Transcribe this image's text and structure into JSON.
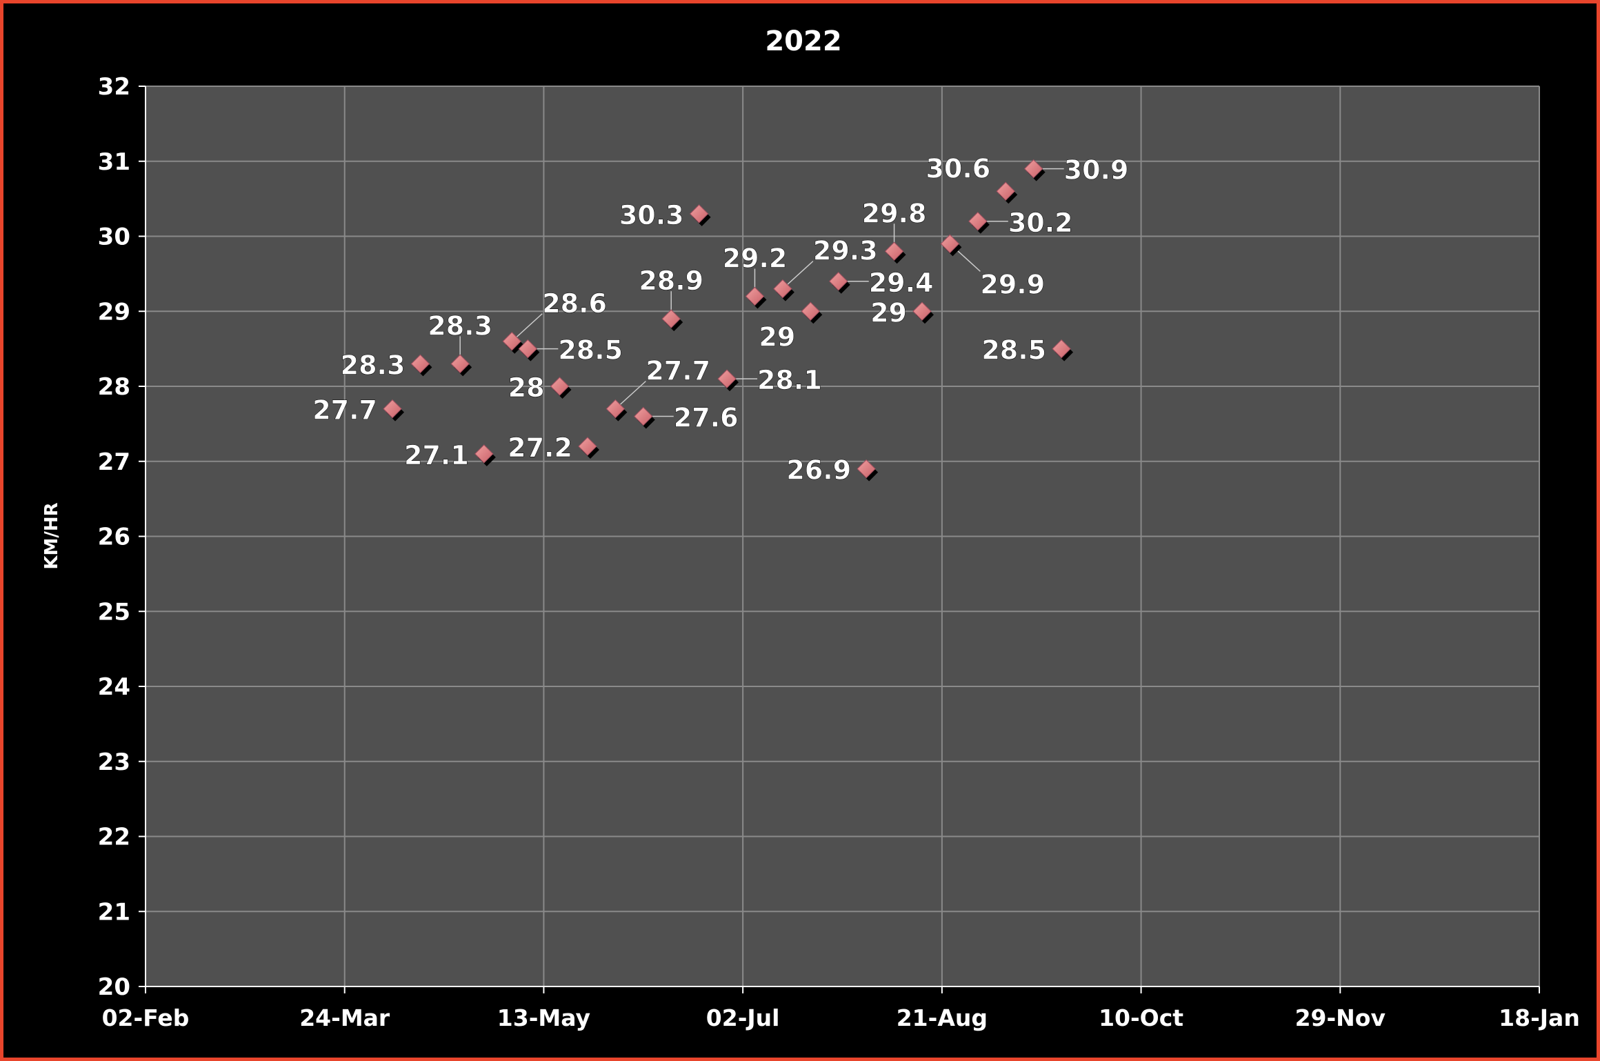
{
  "chart_data": {
    "type": "scatter",
    "title": "2022",
    "xlabel": "",
    "ylabel": "KM/HR",
    "xlim": [
      "2022-02-02",
      "2023-01-18"
    ],
    "ylim": [
      20,
      32
    ],
    "x_tick_labels": [
      "02-Feb",
      "24-Mar",
      "13-May",
      "02-Jul",
      "21-Aug",
      "10-Oct",
      "29-Nov",
      "18-Jan"
    ],
    "y_tick_labels": [
      "20",
      "21",
      "22",
      "23",
      "24",
      "25",
      "26",
      "27",
      "28",
      "29",
      "30",
      "31",
      "32"
    ],
    "grid": true,
    "data_labels": true,
    "colors": {
      "marker": "#e08080",
      "marker_shadow": "#000000",
      "plot_bg": "#505050",
      "grid": "#8a8a8a",
      "border": "#e8452c"
    },
    "points": [
      {
        "x": "2022-04-05",
        "y": 27.7
      },
      {
        "x": "2022-04-12",
        "y": 28.3
      },
      {
        "x": "2022-04-22",
        "y": 28.3
      },
      {
        "x": "2022-04-28",
        "y": 27.1
      },
      {
        "x": "2022-05-05",
        "y": 28.6
      },
      {
        "x": "2022-05-09",
        "y": 28.5
      },
      {
        "x": "2022-05-17",
        "y": 28
      },
      {
        "x": "2022-05-24",
        "y": 27.2
      },
      {
        "x": "2022-05-31",
        "y": 27.7
      },
      {
        "x": "2022-06-07",
        "y": 27.6
      },
      {
        "x": "2022-06-14",
        "y": 28.9
      },
      {
        "x": "2022-06-21",
        "y": 30.3
      },
      {
        "x": "2022-06-28",
        "y": 28.1
      },
      {
        "x": "2022-07-05",
        "y": 29.2
      },
      {
        "x": "2022-07-12",
        "y": 29.3
      },
      {
        "x": "2022-07-19",
        "y": 29
      },
      {
        "x": "2022-07-26",
        "y": 29.4
      },
      {
        "x": "2022-08-02",
        "y": 26.9
      },
      {
        "x": "2022-08-09",
        "y": 29.8
      },
      {
        "x": "2022-08-16",
        "y": 29
      },
      {
        "x": "2022-08-23",
        "y": 29.9
      },
      {
        "x": "2022-08-30",
        "y": 30.2
      },
      {
        "x": "2022-09-06",
        "y": 30.6
      },
      {
        "x": "2022-09-13",
        "y": 30.9
      },
      {
        "x": "2022-09-20",
        "y": 28.5
      }
    ]
  }
}
